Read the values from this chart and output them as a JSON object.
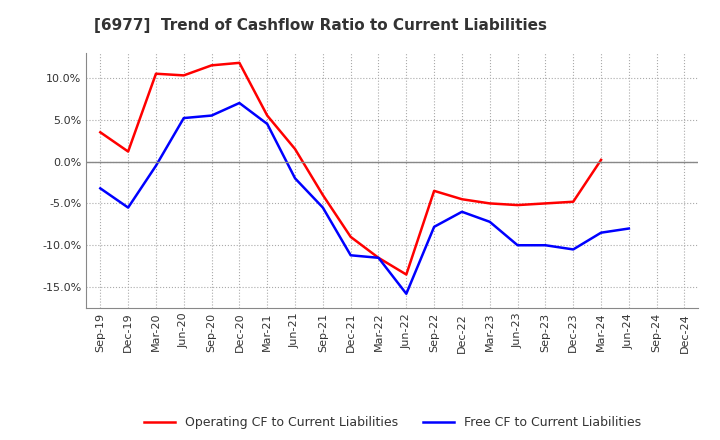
{
  "title": "[6977]  Trend of Cashflow Ratio to Current Liabilities",
  "x_labels": [
    "Sep-19",
    "Dec-19",
    "Mar-20",
    "Jun-20",
    "Sep-20",
    "Dec-20",
    "Mar-21",
    "Jun-21",
    "Sep-21",
    "Dec-21",
    "Mar-22",
    "Jun-22",
    "Sep-22",
    "Dec-22",
    "Mar-23",
    "Jun-23",
    "Sep-23",
    "Dec-23",
    "Mar-24",
    "Jun-24",
    "Sep-24",
    "Dec-24"
  ],
  "operating_cf": [
    3.5,
    1.2,
    10.5,
    10.3,
    11.5,
    11.8,
    5.5,
    1.5,
    -4.0,
    -9.0,
    -11.5,
    -13.5,
    -3.5,
    -4.5,
    -5.0,
    -5.2,
    -5.0,
    -4.8,
    0.2,
    null,
    null,
    null
  ],
  "free_cf": [
    -3.2,
    -5.5,
    -0.5,
    5.2,
    5.5,
    7.0,
    4.5,
    -2.0,
    -5.5,
    -11.2,
    -11.5,
    -15.8,
    -7.8,
    -6.0,
    -7.2,
    -10.0,
    -10.0,
    -10.5,
    -8.5,
    -8.0,
    null,
    null
  ],
  "operating_color": "#ff0000",
  "free_color": "#0000ff",
  "ylim": [
    -17.5,
    13.0
  ],
  "yticks": [
    -15.0,
    -10.0,
    -5.0,
    0.0,
    5.0,
    10.0
  ],
  "background_color": "#ffffff",
  "grid_color": "#aaaaaa",
  "title_fontsize": 11,
  "title_color": "#333333",
  "tick_fontsize": 8,
  "legend_fontsize": 9
}
